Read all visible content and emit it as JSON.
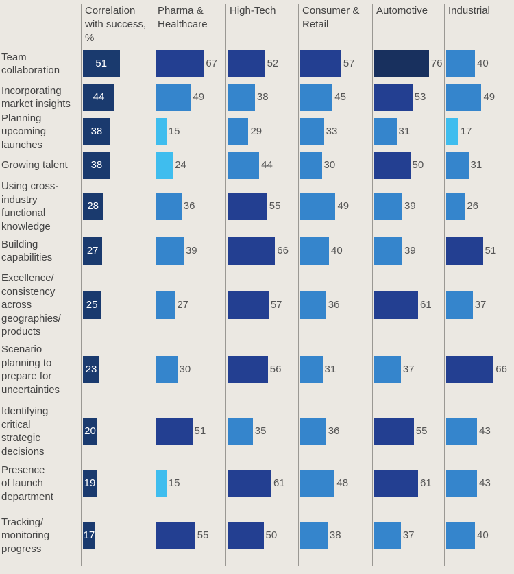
{
  "chart_data": {
    "type": "bar",
    "columns": [
      "Correlation\nwith success,\n%",
      "Pharma &\nHealthcare",
      "High-Tech",
      "Consumer &\nRetail",
      "Automotive",
      "Industrial"
    ],
    "categories": [
      "Team\ncollaboration",
      "Incorporating\nmarket insights",
      "Planning\nupcoming\nlaunches",
      "Growing talent",
      "Using cross-\nindustry\nfunctional\nknowledge",
      "Building\ncapabilities",
      "Excellence/\nconsistency\nacross\ngeographies/\nproducts",
      "Scenario\nplanning to\nprepare for\nuncertainties",
      "Identifying\ncritical\nstrategic\ndecisions",
      "Presence\nof launch\ndepartment",
      "Tracking/\nmonitoring\nprogress"
    ],
    "series": [
      {
        "name": "Correlation\nwith success,\n%",
        "values": [
          51,
          44,
          38,
          38,
          28,
          27,
          25,
          23,
          20,
          19,
          17
        ]
      },
      {
        "name": "Pharma &\nHealthcare",
        "values": [
          67,
          49,
          15,
          24,
          36,
          39,
          27,
          30,
          51,
          15,
          55
        ]
      },
      {
        "name": "High-Tech",
        "values": [
          52,
          38,
          29,
          44,
          55,
          66,
          57,
          56,
          35,
          61,
          50
        ]
      },
      {
        "name": "Consumer &\nRetail",
        "values": [
          57,
          45,
          33,
          30,
          49,
          40,
          36,
          31,
          36,
          48,
          38
        ]
      },
      {
        "name": "Automotive",
        "values": [
          76,
          53,
          31,
          50,
          39,
          39,
          61,
          37,
          55,
          61,
          37
        ]
      },
      {
        "name": "Industrial",
        "values": [
          40,
          49,
          17,
          31,
          26,
          51,
          37,
          66,
          43,
          43,
          40
        ]
      }
    ],
    "colors": {
      "correlation": "#1a3a6e",
      "darkest": "#18305e",
      "dark": "#233f91",
      "medium": "#3585cc",
      "light": "#3fbdee"
    }
  }
}
